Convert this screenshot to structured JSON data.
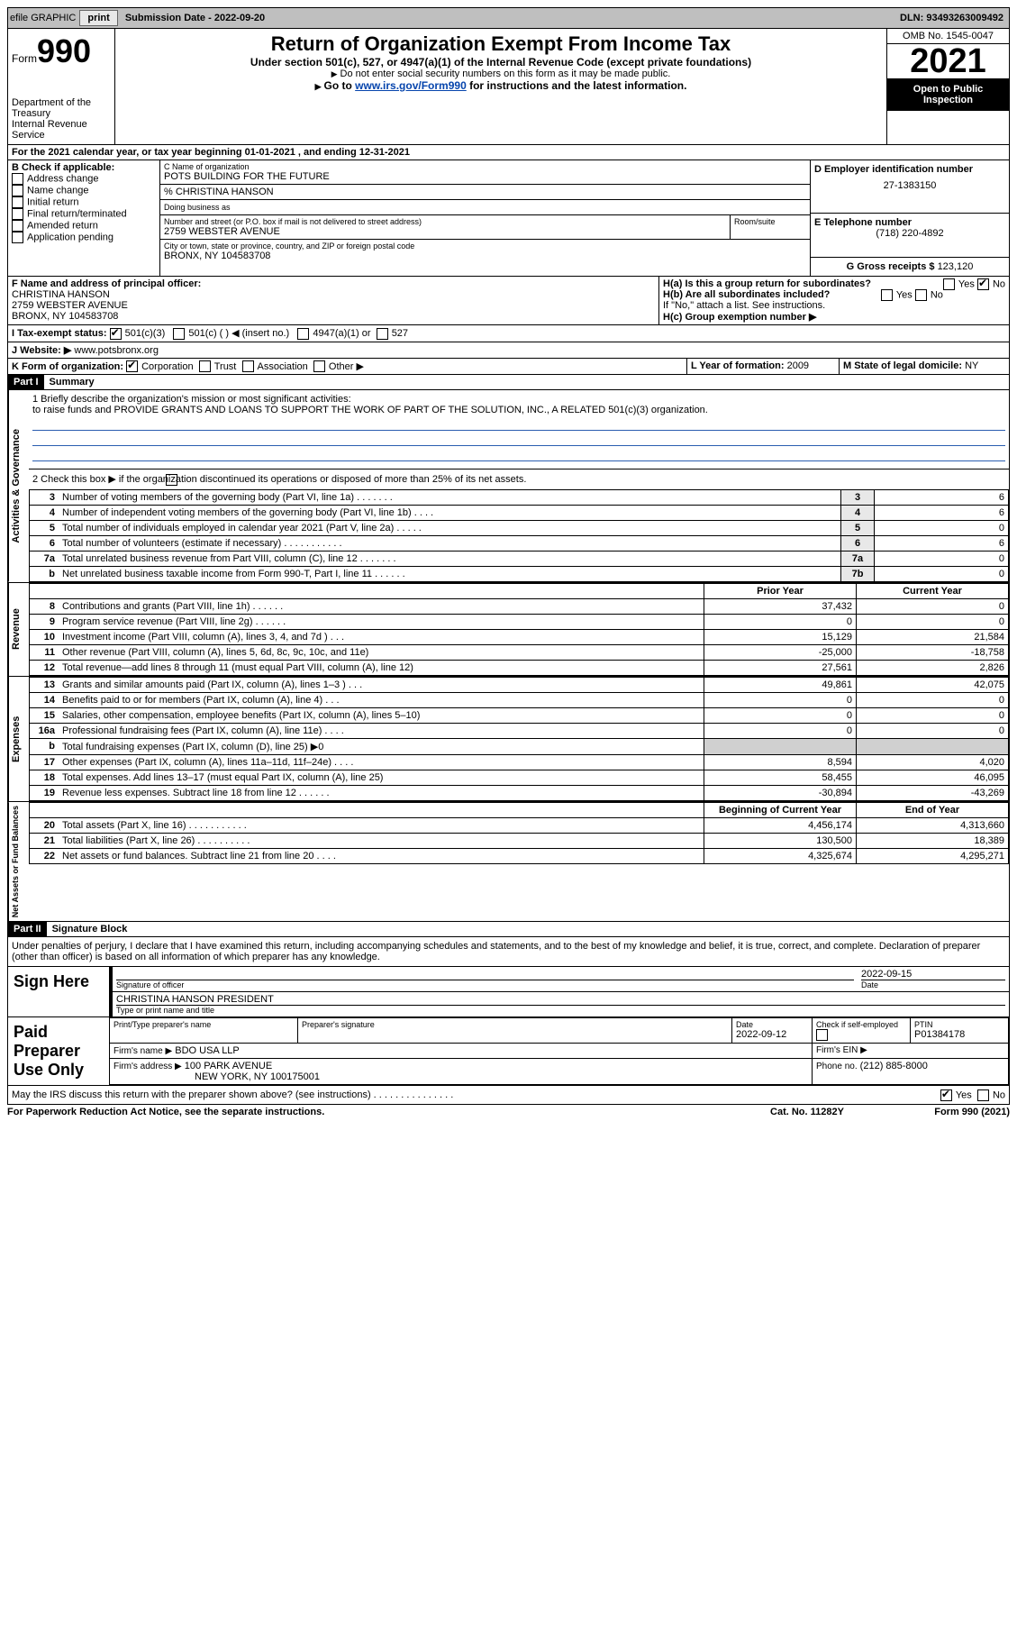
{
  "topbar": {
    "efile": "efile GRAPHIC",
    "print": "print",
    "submission_lbl": "Submission Date - 2022-09-20",
    "dln_lbl": "DLN: 93493263009492"
  },
  "header": {
    "form_word": "Form",
    "form_num": "990",
    "dept": "Department of the Treasury",
    "irs": "Internal Revenue Service",
    "title": "Return of Organization Exempt From Income Tax",
    "subtitle": "Under section 501(c), 527, or 4947(a)(1) of the Internal Revenue Code (except private foundations)",
    "note1": "Do not enter social security numbers on this form as it may be made public.",
    "note2_prefix": "Go to ",
    "note2_link": "www.irs.gov/Form990",
    "note2_suffix": " for instructions and the latest information.",
    "omb": "OMB No. 1545-0047",
    "year": "2021",
    "open": "Open to Public Inspection"
  },
  "A": {
    "text": "For the 2021 calendar year, or tax year beginning 01-01-2021    , and ending 12-31-2021"
  },
  "B": {
    "heading": "B Check if applicable:",
    "items": [
      "Address change",
      "Name change",
      "Initial return",
      "Final return/terminated",
      "Amended return",
      "Application pending"
    ]
  },
  "C": {
    "name_lbl": "C Name of organization",
    "name": "POTS BUILDING FOR THE FUTURE",
    "co": "% CHRISTINA HANSON",
    "dba_lbl": "Doing business as",
    "dba": "",
    "street_lbl": "Number and street (or P.O. box if mail is not delivered to street address)",
    "room_lbl": "Room/suite",
    "street": "2759 WEBSTER AVENUE",
    "city_lbl": "City or town, state or province, country, and ZIP or foreign postal code",
    "city": "BRONX, NY  104583708"
  },
  "D": {
    "lbl": "D Employer identification number",
    "val": "27-1383150"
  },
  "E": {
    "lbl": "E Telephone number",
    "val": "(718) 220-4892"
  },
  "G": {
    "lbl": "G Gross receipts $",
    "val": "123,120"
  },
  "F": {
    "lbl": "F  Name and address of principal officer:",
    "name": "CHRISTINA HANSON",
    "addr1": "2759 WEBSTER AVENUE",
    "addr2": "BRONX, NY  104583708"
  },
  "H": {
    "a_lbl": "H(a)  Is this a group return for subordinates?",
    "a_yes": "Yes",
    "a_no": "No",
    "b_lbl": "H(b)  Are all subordinates included?",
    "b_note": "If \"No,\" attach a list. See instructions.",
    "c_lbl": "H(c)  Group exemption number ▶"
  },
  "I": {
    "lbl": "I  Tax-exempt status:",
    "c3": "501(c)(3)",
    "c": "501(c) (  ) ◀ (insert no.)",
    "a1": "4947(a)(1) or",
    "527": "527"
  },
  "J": {
    "lbl": "J  Website: ▶",
    "val": "www.potsbronx.org"
  },
  "K": {
    "lbl": "K Form of organization:",
    "corp": "Corporation",
    "trust": "Trust",
    "assoc": "Association",
    "other": "Other ▶"
  },
  "L": {
    "lbl": "L Year of formation:",
    "val": "2009"
  },
  "M": {
    "lbl": "M State of legal domicile:",
    "val": "NY"
  },
  "part1": {
    "bar": "Part I",
    "title": "Summary"
  },
  "summary": {
    "l1_lbl": "1  Briefly describe the organization's mission or most significant activities:",
    "l1_text": "to raise funds and PROVIDE GRANTS AND LOANS TO SUPPORT THE WORK OF PART OF THE SOLUTION, INC., A RELATED 501(c)(3) organization.",
    "l2": "2   Check this box ▶       if the organization discontinued its operations or disposed of more than 25% of its net assets.",
    "rows_ag": [
      {
        "n": "3",
        "t": "Number of voting members of the governing body (Part VI, line 1a) . . . . . . .",
        "box": "3",
        "v": "6"
      },
      {
        "n": "4",
        "t": "Number of independent voting members of the governing body (Part VI, line 1b) . . . .",
        "box": "4",
        "v": "6"
      },
      {
        "n": "5",
        "t": "Total number of individuals employed in calendar year 2021 (Part V, line 2a) . . . . .",
        "box": "5",
        "v": "0"
      },
      {
        "n": "6",
        "t": "Total number of volunteers (estimate if necessary) . . . . . . . . . . .",
        "box": "6",
        "v": "6"
      },
      {
        "n": "7a",
        "t": "Total unrelated business revenue from Part VIII, column (C), line 12 . . . . . . .",
        "box": "7a",
        "v": "0"
      },
      {
        "n": "b",
        "t": "Net unrelated business taxable income from Form 990-T, Part I, line 11 . . . . . .",
        "box": "7b",
        "v": "0"
      }
    ],
    "col_prior": "Prior Year",
    "col_current": "Current Year",
    "rev_rows": [
      {
        "n": "8",
        "t": "Contributions and grants (Part VIII, line 1h) . . . . . .",
        "p": "37,432",
        "c": "0"
      },
      {
        "n": "9",
        "t": "Program service revenue (Part VIII, line 2g) . . . . . .",
        "p": "0",
        "c": "0"
      },
      {
        "n": "10",
        "t": "Investment income (Part VIII, column (A), lines 3, 4, and 7d ) . . .",
        "p": "15,129",
        "c": "21,584"
      },
      {
        "n": "11",
        "t": "Other revenue (Part VIII, column (A), lines 5, 6d, 8c, 9c, 10c, and 11e)",
        "p": "-25,000",
        "c": "-18,758"
      },
      {
        "n": "12",
        "t": "Total revenue—add lines 8 through 11 (must equal Part VIII, column (A), line 12)",
        "p": "27,561",
        "c": "2,826"
      }
    ],
    "exp_rows": [
      {
        "n": "13",
        "t": "Grants and similar amounts paid (Part IX, column (A), lines 1–3 ) . . .",
        "p": "49,861",
        "c": "42,075"
      },
      {
        "n": "14",
        "t": "Benefits paid to or for members (Part IX, column (A), line 4) . . .",
        "p": "0",
        "c": "0"
      },
      {
        "n": "15",
        "t": "Salaries, other compensation, employee benefits (Part IX, column (A), lines 5–10)",
        "p": "0",
        "c": "0"
      },
      {
        "n": "16a",
        "t": "Professional fundraising fees (Part IX, column (A), line 11e) . . . .",
        "p": "0",
        "c": "0"
      },
      {
        "n": "b",
        "t": "Total fundraising expenses (Part IX, column (D), line 25) ▶0",
        "p": "",
        "c": "",
        "grey": true
      },
      {
        "n": "17",
        "t": "Other expenses (Part IX, column (A), lines 11a–11d, 11f–24e) . . . .",
        "p": "8,594",
        "c": "4,020"
      },
      {
        "n": "18",
        "t": "Total expenses. Add lines 13–17 (must equal Part IX, column (A), line 25)",
        "p": "58,455",
        "c": "46,095"
      },
      {
        "n": "19",
        "t": "Revenue less expenses. Subtract line 18 from line 12 . . . . . .",
        "p": "-30,894",
        "c": "-43,269"
      }
    ],
    "col_boy": "Beginning of Current Year",
    "col_eoy": "End of Year",
    "na_rows": [
      {
        "n": "20",
        "t": "Total assets (Part X, line 16) . . . . . . . . . . .",
        "p": "4,456,174",
        "c": "4,313,660"
      },
      {
        "n": "21",
        "t": "Total liabilities (Part X, line 26) . . . . . . . . . .",
        "p": "130,500",
        "c": "18,389"
      },
      {
        "n": "22",
        "t": "Net assets or fund balances. Subtract line 21 from line 20 . . . .",
        "p": "4,325,674",
        "c": "4,295,271"
      }
    ],
    "tab_ag": "Activities & Governance",
    "tab_rev": "Revenue",
    "tab_exp": "Expenses",
    "tab_na": "Net Assets or Fund Balances"
  },
  "part2": {
    "bar": "Part II",
    "title": "Signature Block"
  },
  "sig": {
    "decl": "Under penalties of perjury, I declare that I have examined this return, including accompanying schedules and statements, and to the best of my knowledge and belief, it is true, correct, and complete. Declaration of preparer (other than officer) is based on all information of which preparer has any knowledge.",
    "sign_here": "Sign Here",
    "sig_officer": "Signature of officer",
    "date": "Date",
    "sig_date": "2022-09-15",
    "name_title_lbl": "Type or print name and title",
    "name_title": "CHRISTINA HANSON  PRESIDENT",
    "paid": "Paid Preparer Use Only",
    "p_name_lbl": "Print/Type preparer's name",
    "p_sig_lbl": "Preparer's signature",
    "p_date_lbl": "Date",
    "p_date": "2022-09-12",
    "p_self_lbl": "Check         if self-employed",
    "ptin_lbl": "PTIN",
    "ptin": "P01384178",
    "firm_name_lbl": "Firm's name   ▶",
    "firm_name": "BDO USA LLP",
    "firm_ein_lbl": "Firm's EIN ▶",
    "firm_addr_lbl": "Firm's address ▶",
    "firm_addr1": "100 PARK AVENUE",
    "firm_addr2": "NEW YORK, NY  100175001",
    "phone_lbl": "Phone no.",
    "phone": "(212) 885-8000",
    "discuss": "May the IRS discuss this return with the preparer shown above? (see instructions) . . . . . . . . . . . . . . .",
    "yes": "Yes",
    "no": "No"
  },
  "footer": {
    "pra": "For Paperwork Reduction Act Notice, see the separate instructions.",
    "cat": "Cat. No. 11282Y",
    "form": "Form 990 (2021)"
  }
}
